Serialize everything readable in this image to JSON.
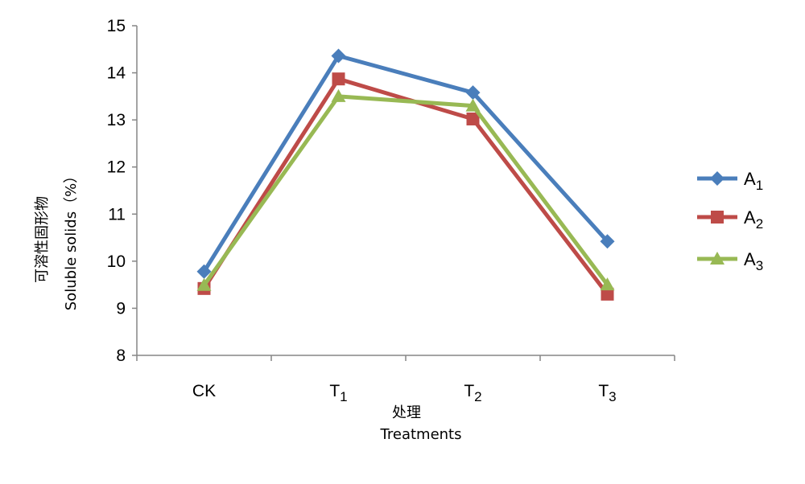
{
  "chart_data": {
    "type": "line",
    "categories": [
      "CK",
      "T1",
      "T2",
      "T3"
    ],
    "category_labels": [
      {
        "main": "CK",
        "sub": ""
      },
      {
        "main": "T",
        "sub": "1"
      },
      {
        "main": "T",
        "sub": "2"
      },
      {
        "main": "T",
        "sub": "3"
      }
    ],
    "series": [
      {
        "name": "A1",
        "name_main": "A",
        "name_sub": "1",
        "color": "#4a7ebb",
        "marker": "diamond",
        "values": [
          9.78,
          14.36,
          13.58,
          10.42
        ]
      },
      {
        "name": "A2",
        "name_main": "A",
        "name_sub": "2",
        "color": "#be4b48",
        "marker": "square",
        "values": [
          9.42,
          13.87,
          13.02,
          9.3
        ]
      },
      {
        "name": "A3",
        "name_main": "A",
        "name_sub": "3",
        "color": "#98b954",
        "marker": "triangle",
        "values": [
          9.49,
          13.5,
          13.3,
          9.5
        ]
      }
    ],
    "ylim": [
      8,
      15
    ],
    "yticks": [
      "8",
      "9",
      "10",
      "11",
      "12",
      "13",
      "14",
      "15"
    ],
    "ylabel_cn": "可溶性固形物",
    "ylabel_en": "Soluble solids（%）",
    "xlabel_cn": "处理",
    "xlabel_en": "Treatments",
    "grid": false,
    "legend_position": "right"
  }
}
